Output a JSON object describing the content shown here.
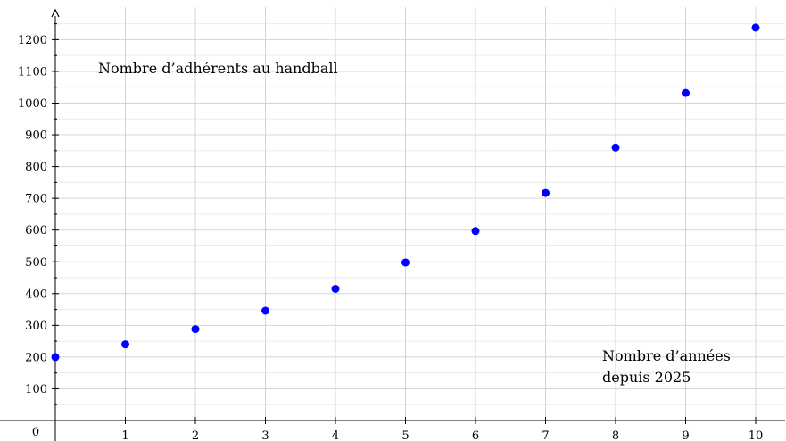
{
  "chart_data": {
    "type": "scatter",
    "title": "",
    "xlabel": "",
    "ylabel": "",
    "xlim": [
      0,
      10.4
    ],
    "ylim": [
      0,
      1270
    ],
    "origin_label": "0",
    "x_ticks": [
      1,
      2,
      3,
      4,
      5,
      6,
      7,
      8,
      9,
      10
    ],
    "y_ticks": [
      100,
      200,
      300,
      400,
      500,
      600,
      700,
      800,
      900,
      1000,
      1100,
      1200
    ],
    "grid": true,
    "series": [
      {
        "color": "#0000ff",
        "points": [
          {
            "x": 0,
            "y": 200
          },
          {
            "x": 1,
            "y": 240
          },
          {
            "x": 2,
            "y": 288
          },
          {
            "x": 3,
            "y": 346
          },
          {
            "x": 4,
            "y": 415
          },
          {
            "x": 5,
            "y": 498
          },
          {
            "x": 6,
            "y": 597
          },
          {
            "x": 7,
            "y": 717
          },
          {
            "x": 8,
            "y": 860
          },
          {
            "x": 9,
            "y": 1032
          },
          {
            "x": 10,
            "y": 1238
          }
        ]
      }
    ],
    "annotations": [
      {
        "id": "ylabel",
        "lines": [
          "Nombre d’adhérents au handball"
        ]
      },
      {
        "id": "xlabel",
        "lines": [
          "Nombre d’années",
          "depuis 2025"
        ]
      }
    ]
  }
}
